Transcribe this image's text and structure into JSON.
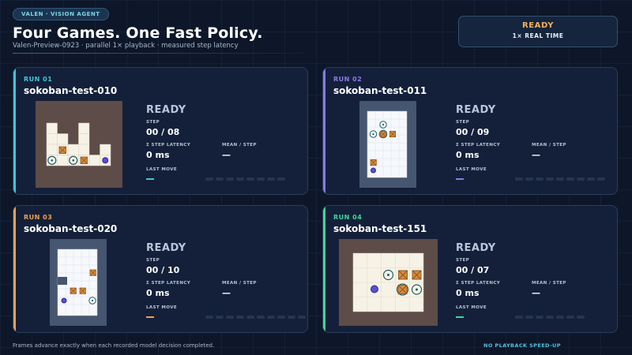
{
  "header": {
    "badge": "VALEN  ·  VISION AGENT",
    "title": "Four Games. One Fast Policy.",
    "subtitle": "Valen-Preview-0923   ·   parallel 1× playback   ·   measured step latency"
  },
  "status": {
    "state": "READY",
    "mode": "1×  REAL TIME"
  },
  "labels": {
    "step": "STEP",
    "step_latency": "Σ STEP LATENCY",
    "mean_step": "MEAN / STEP",
    "last_move": "LAST MOVE"
  },
  "runs": [
    {
      "run_label": "RUN 01",
      "game": "sokoban-test-010",
      "state": "READY",
      "step": "00 / 08",
      "latency": "0 ms",
      "mean": "—",
      "accent": "#3ec6d8"
    },
    {
      "run_label": "RUN 02",
      "game": "sokoban-test-011",
      "state": "READY",
      "step": "00 / 09",
      "latency": "0 ms",
      "mean": "—",
      "accent": "#8a7ae8"
    },
    {
      "run_label": "RUN 03",
      "game": "sokoban-test-020",
      "state": "READY",
      "step": "00 / 10",
      "latency": "0 ms",
      "mean": "—",
      "accent": "#f0a050"
    },
    {
      "run_label": "RUN 04",
      "game": "sokoban-test-151",
      "state": "READY",
      "step": "00 / 07",
      "latency": "0 ms",
      "mean": "—",
      "accent": "#3ed89a"
    }
  ],
  "footer": {
    "note": "Frames advance exactly when each recorded model decision completed.",
    "speed": "NO PLAYBACK SPEED-UP"
  }
}
